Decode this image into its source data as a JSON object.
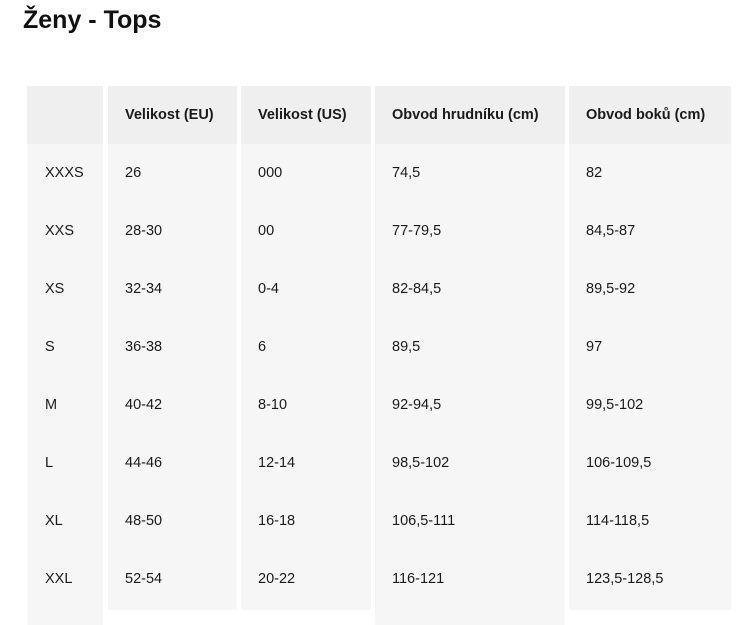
{
  "title": "Ženy - Tops",
  "headers": [
    "",
    "Velikost (EU)",
    "Velikost (US)",
    "Obvod hrudníku (cm)",
    "Obvod boků (cm)"
  ],
  "rows": [
    [
      "XXXS",
      "26",
      "000",
      "74,5",
      "82"
    ],
    [
      "XXS",
      "28-30",
      "00",
      "77-79,5",
      "84,5-87"
    ],
    [
      "XS",
      "32-34",
      "0-4",
      "82-84,5",
      "89,5-92"
    ],
    [
      "S",
      "36-38",
      "6",
      "89,5",
      "97"
    ],
    [
      "M",
      "40-42",
      "8-10",
      "92-94,5",
      "99,5-102"
    ],
    [
      "L",
      "44-46",
      "12-14",
      "98,5-102",
      "106-109,5"
    ],
    [
      "XL",
      "48-50",
      "16-18",
      "106,5-111",
      "114-118,5"
    ],
    [
      "XXL",
      "52-54",
      "20-22",
      "116-121",
      "123,5-128,5"
    ]
  ]
}
